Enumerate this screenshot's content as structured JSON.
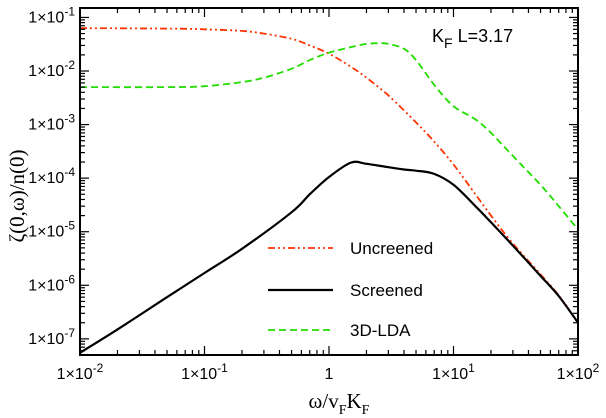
{
  "chart_data": {
    "type": "line",
    "xscale": "log",
    "yscale": "log",
    "xlim": [
      0.01,
      100
    ],
    "ylim": [
      5e-08,
      0.15
    ],
    "xticks": [
      {
        "value": 0.01,
        "label": "1×10",
        "exp": "-2"
      },
      {
        "value": 0.1,
        "label": "1×10",
        "exp": "-1"
      },
      {
        "value": 1,
        "label": "1",
        "exp": ""
      },
      {
        "value": 10,
        "label": "1×10",
        "exp": "1"
      },
      {
        "value": 100,
        "label": "1×10",
        "exp": "2"
      }
    ],
    "yticks": [
      {
        "value": 1e-07,
        "label": "1×10",
        "exp": "-7"
      },
      {
        "value": 1e-06,
        "label": "1×10",
        "exp": "-6"
      },
      {
        "value": 1e-05,
        "label": "1×10",
        "exp": "-5"
      },
      {
        "value": 0.0001,
        "label": "1×10",
        "exp": "-4"
      },
      {
        "value": 0.001,
        "label": "1×10",
        "exp": "-3"
      },
      {
        "value": 0.01,
        "label": "1×10",
        "exp": "-2"
      },
      {
        "value": 0.1,
        "label": "1×10",
        "exp": "-1"
      }
    ],
    "xlabel": {
      "main": "ω/v",
      "sub1": "F",
      "mid": "K",
      "sub2": "F"
    },
    "ylabel": "ζ(0,ω)/n(0)",
    "annotation": {
      "main": "K",
      "sub": "F",
      "rest": " L=3.17"
    },
    "legend_position": "bottom-center",
    "grid": false,
    "series": [
      {
        "name": "Uncreened",
        "color": "#ff3300",
        "dash": "dashdotdot",
        "x": [
          0.01,
          0.05,
          0.1,
          0.2,
          0.3,
          0.5,
          0.7,
          1,
          1.5,
          2,
          3,
          5,
          7,
          10,
          15,
          20,
          30,
          50,
          70,
          100
        ],
        "y": [
          0.063,
          0.062,
          0.06,
          0.056,
          0.05,
          0.04,
          0.03,
          0.021,
          0.012,
          0.0075,
          0.0035,
          0.0011,
          0.00048,
          0.00018,
          5e-05,
          2e-05,
          6e-06,
          1.6e-06,
          6.5e-07,
          2e-07
        ]
      },
      {
        "name": "Screened",
        "color": "#000000",
        "dash": "solid",
        "x": [
          0.01,
          0.02,
          0.05,
          0.1,
          0.2,
          0.5,
          0.7,
          1,
          1.5,
          2,
          3,
          4,
          5,
          7,
          10,
          15,
          20,
          30,
          50,
          70,
          100
        ],
        "y": [
          5.5e-08,
          1.5e-07,
          6e-07,
          1.7e-06,
          4.8e-06,
          2.3e-05,
          5e-05,
          0.000105,
          0.000195,
          0.000185,
          0.00016,
          0.000145,
          0.000138,
          0.00012,
          7.5e-05,
          3e-05,
          1.5e-05,
          5.5e-06,
          1.5e-06,
          6.3e-07,
          2e-07
        ]
      },
      {
        "name": "3D-LDA",
        "color": "#22dd00",
        "dash": "dashed",
        "x": [
          0.01,
          0.05,
          0.1,
          0.2,
          0.3,
          0.5,
          0.7,
          1,
          1.5,
          2,
          2.5,
          3,
          4,
          5,
          7,
          10,
          15,
          20,
          30,
          50,
          70,
          100
        ],
        "y": [
          0.005,
          0.005,
          0.0052,
          0.0062,
          0.0075,
          0.011,
          0.016,
          0.022,
          0.028,
          0.032,
          0.033,
          0.032,
          0.026,
          0.016,
          0.0055,
          0.0022,
          0.00125,
          0.0007,
          0.00026,
          7.5e-05,
          3e-05,
          1.1e-05
        ]
      }
    ]
  }
}
